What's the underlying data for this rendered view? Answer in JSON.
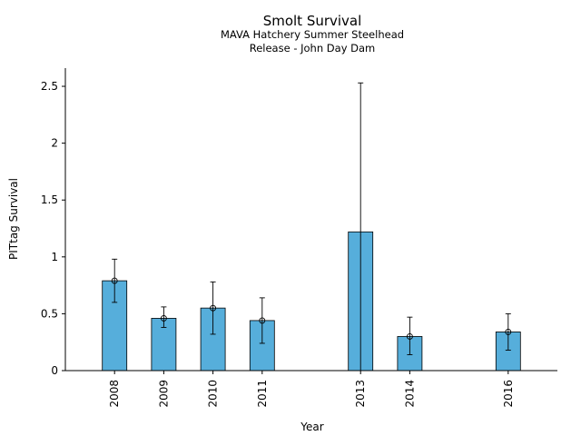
{
  "chart_data": {
    "type": "bar",
    "title": "Smolt Survival",
    "subtitle_line1": "MAVA Hatchery Summer Steelhead",
    "subtitle_line2": "Release - John Day Dam",
    "xlabel": "Year",
    "ylabel": "PITtag Survival",
    "categories": [
      "2008",
      "2009",
      "2010",
      "2011",
      "2013",
      "2014",
      "2016"
    ],
    "x": [
      2008,
      2009,
      2010,
      2011,
      2013,
      2014,
      2016
    ],
    "values": [
      0.79,
      0.46,
      0.55,
      0.44,
      1.22,
      0.3,
      0.34
    ],
    "error_low": [
      0.6,
      0.38,
      0.32,
      0.24,
      0.0,
      0.14,
      0.18
    ],
    "error_high": [
      0.98,
      0.56,
      0.78,
      0.64,
      2.53,
      0.47,
      0.5
    ],
    "point_estimates": [
      0.79,
      0.46,
      0.55,
      0.44,
      null,
      0.3,
      0.34
    ],
    "xlim": [
      2007,
      2017
    ],
    "ylim": [
      0,
      2.66
    ],
    "yticks": [
      0,
      0.5,
      1,
      1.5,
      2,
      2.5
    ],
    "ytick_labels": [
      "0",
      "0.5",
      "1",
      "1.5",
      "2",
      "2.5"
    ],
    "grid": false,
    "legend": "none",
    "colors": {
      "bar": "#56aedb",
      "edge": "#000000"
    }
  }
}
